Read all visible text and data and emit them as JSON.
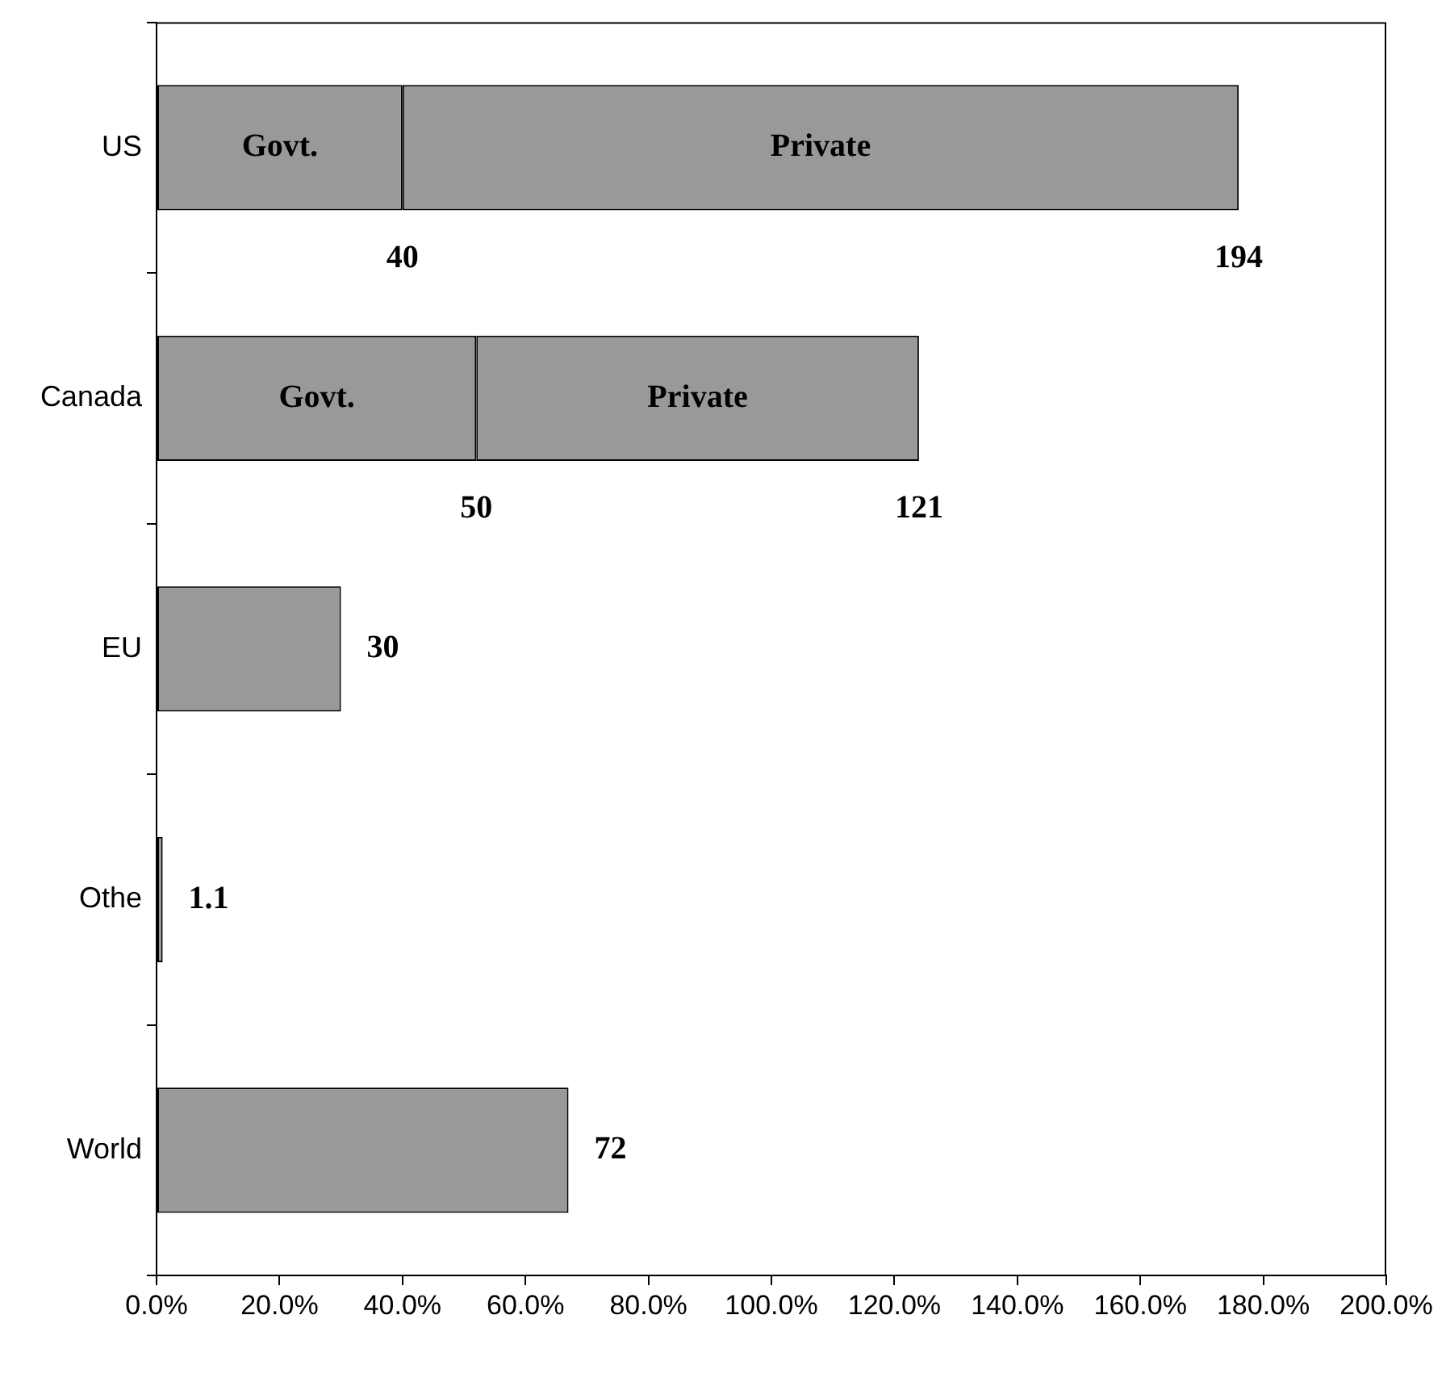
{
  "chart_data": {
    "type": "bar",
    "orientation": "horizontal",
    "stacked": true,
    "categories": [
      "US",
      "Canada",
      "EU",
      "Othe",
      "World"
    ],
    "series": [
      {
        "name": "Govt.",
        "color": "#999999",
        "values": [
          40,
          52,
          null,
          null,
          null
        ]
      },
      {
        "name": "Private",
        "color": "#999999",
        "values": [
          136,
          72,
          null,
          null,
          null
        ]
      },
      {
        "color": "#999999",
        "values": [
          null,
          null,
          30,
          1,
          67
        ]
      }
    ],
    "annotations": [
      {
        "text": "40",
        "x": 40,
        "y": "US"
      },
      {
        "text": "194",
        "x": 176,
        "y": "US"
      },
      {
        "text": "50",
        "x": 52,
        "y": "Canada"
      },
      {
        "text": "121",
        "x": 124,
        "y": "Canada"
      },
      {
        "text": "30",
        "x": 30,
        "y": "EU"
      },
      {
        "text": "1.1",
        "x": 1,
        "y": "Othe"
      },
      {
        "text": "72",
        "x": 67,
        "y": "World"
      }
    ],
    "xlim": [
      0,
      200
    ],
    "xticks": [
      {
        "value": 0,
        "label": "0.0%"
      },
      {
        "value": 20,
        "label": "20.0%"
      },
      {
        "value": 40,
        "label": "40.0%"
      },
      {
        "value": 60,
        "label": "60.0%"
      },
      {
        "value": 80,
        "label": "80.0%"
      },
      {
        "value": 100,
        "label": "100.0%"
      },
      {
        "value": 120,
        "label": "120.0%"
      },
      {
        "value": 140,
        "label": "140.0%"
      },
      {
        "value": 160,
        "label": "160.0%"
      },
      {
        "value": 180,
        "label": "180.0%"
      },
      {
        "value": 200,
        "label": "200.0%"
      }
    ],
    "grid": false
  }
}
